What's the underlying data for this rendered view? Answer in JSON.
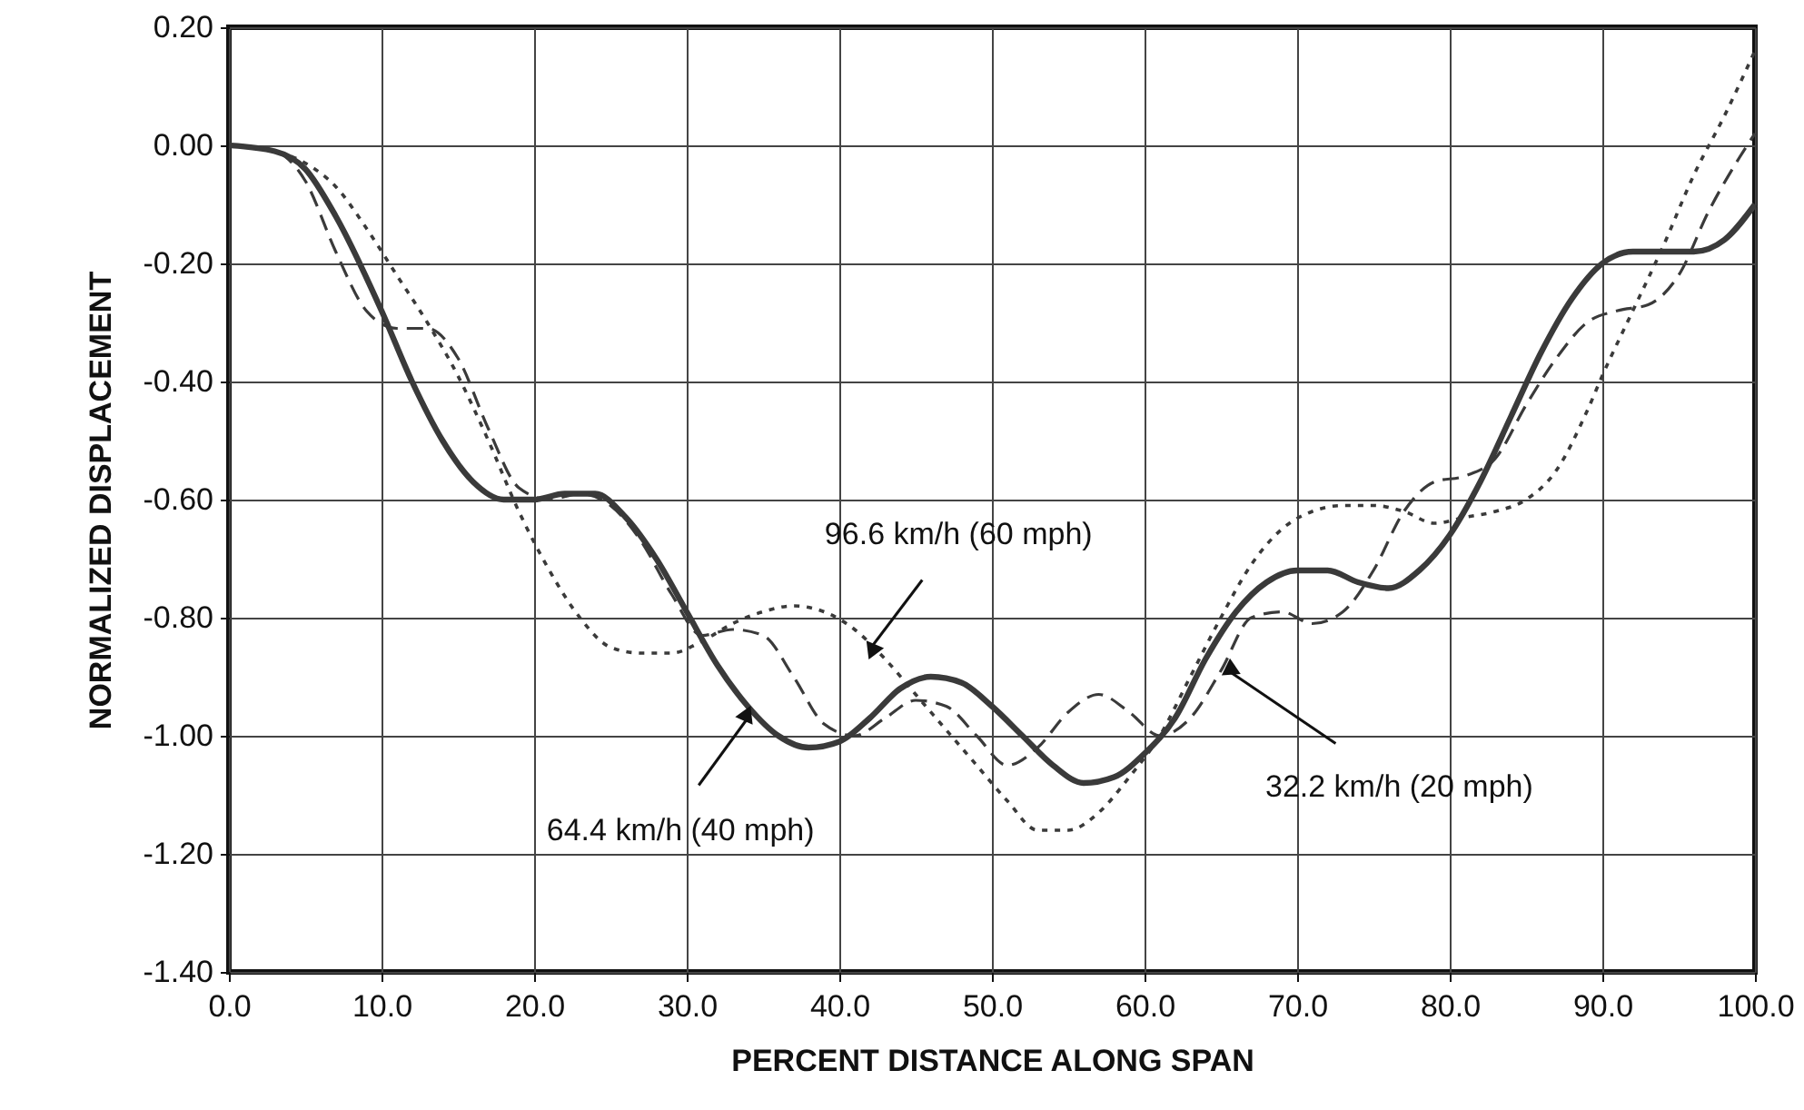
{
  "chart_data": {
    "type": "line",
    "xlabel": "PERCENT DISTANCE ALONG SPAN",
    "ylabel": "NORMALIZED DISPLACEMENT",
    "xlim": [
      0,
      100
    ],
    "ylim": [
      -1.4,
      0.2
    ],
    "xticks": [
      {
        "value": 0,
        "label": "0.0"
      },
      {
        "value": 10,
        "label": "10.0"
      },
      {
        "value": 20,
        "label": "20.0"
      },
      {
        "value": 30,
        "label": "30.0"
      },
      {
        "value": 40,
        "label": "40.0"
      },
      {
        "value": 50,
        "label": "50.0"
      },
      {
        "value": 60,
        "label": "60.0"
      },
      {
        "value": 70,
        "label": "70.0"
      },
      {
        "value": 80,
        "label": "80.0"
      },
      {
        "value": 90,
        "label": "90.0"
      },
      {
        "value": 100,
        "label": "100.0"
      }
    ],
    "yticks": [
      {
        "value": -1.4,
        "label": "-1.40"
      },
      {
        "value": -1.2,
        "label": "-1.20"
      },
      {
        "value": -1.0,
        "label": "-1.00"
      },
      {
        "value": -0.8,
        "label": "-0.80"
      },
      {
        "value": -0.6,
        "label": "-0.60"
      },
      {
        "value": -0.4,
        "label": "-0.40"
      },
      {
        "value": -0.2,
        "label": "-0.20"
      },
      {
        "value": 0,
        "label": "0.00"
      },
      {
        "value": 0.2,
        "label": "0.20"
      }
    ],
    "grid": true,
    "marker": "none",
    "series": [
      {
        "color": "#3a3a3a",
        "line_style": "solid",
        "x": [
          0,
          3,
          5,
          7,
          10,
          12,
          14,
          16,
          18,
          20,
          22,
          24,
          26,
          28,
          30,
          32,
          34,
          36,
          38,
          40,
          42,
          44,
          46,
          48,
          50,
          52,
          54,
          56,
          58,
          60,
          62,
          64,
          66,
          68,
          70,
          72,
          74,
          76,
          78,
          80,
          82,
          84,
          86,
          88,
          90,
          92,
          94,
          96,
          98,
          100
        ],
        "values": [
          0,
          -0.01,
          -0.04,
          -0.12,
          -0.28,
          -0.4,
          -0.5,
          -0.57,
          -0.6,
          -0.6,
          -0.59,
          -0.59,
          -0.63,
          -0.7,
          -0.79,
          -0.88,
          -0.95,
          -1.0,
          -1.02,
          -1.01,
          -0.97,
          -0.92,
          -0.9,
          -0.91,
          -0.95,
          -1.0,
          -1.05,
          -1.08,
          -1.07,
          -1.03,
          -0.97,
          -0.87,
          -0.79,
          -0.74,
          -0.72,
          -0.72,
          -0.74,
          -0.75,
          -0.72,
          -0.66,
          -0.57,
          -0.46,
          -0.35,
          -0.26,
          -0.2,
          -0.18,
          -0.18,
          -0.18,
          -0.16,
          -0.1
        ]
      },
      {
        "color": "#3a3a3a",
        "line_style": "dashed",
        "x": [
          0,
          3,
          5,
          7,
          9,
          11,
          13,
          15,
          17,
          19,
          21,
          23,
          25,
          27,
          29,
          31,
          33,
          35,
          37,
          39,
          41,
          43,
          45,
          47,
          49,
          51,
          53,
          55,
          57,
          59,
          61,
          63,
          65,
          67,
          69,
          71,
          73,
          75,
          77,
          79,
          81,
          83,
          85,
          87,
          89,
          91,
          93,
          95,
          97,
          99,
          100
        ],
        "values": [
          0,
          -0.01,
          -0.06,
          -0.18,
          -0.28,
          -0.31,
          -0.31,
          -0.36,
          -0.48,
          -0.58,
          -0.6,
          -0.59,
          -0.61,
          -0.67,
          -0.76,
          -0.83,
          -0.82,
          -0.83,
          -0.9,
          -0.98,
          -1.0,
          -0.97,
          -0.94,
          -0.95,
          -1.0,
          -1.05,
          -1.02,
          -0.96,
          -0.93,
          -0.96,
          -1.0,
          -0.97,
          -0.89,
          -0.8,
          -0.79,
          -0.81,
          -0.79,
          -0.72,
          -0.62,
          -0.57,
          -0.56,
          -0.53,
          -0.44,
          -0.36,
          -0.3,
          -0.28,
          -0.27,
          -0.22,
          -0.11,
          -0.02,
          0.02
        ]
      },
      {
        "color": "#3a3a3a",
        "line_style": "dotted",
        "x": [
          0,
          3,
          5,
          7,
          9,
          11,
          13,
          15,
          17,
          19,
          21,
          23,
          25,
          27,
          29,
          31,
          33,
          35,
          37,
          39,
          41,
          43,
          45,
          47,
          49,
          51,
          53,
          55,
          57,
          59,
          61,
          63,
          65,
          67,
          69,
          71,
          73,
          75,
          77,
          79,
          81,
          83,
          85,
          87,
          89,
          90,
          92,
          94,
          96,
          98,
          100
        ],
        "values": [
          0,
          -0.01,
          -0.03,
          -0.07,
          -0.14,
          -0.22,
          -0.3,
          -0.39,
          -0.5,
          -0.62,
          -0.72,
          -0.8,
          -0.85,
          -0.86,
          -0.86,
          -0.84,
          -0.81,
          -0.79,
          -0.78,
          -0.79,
          -0.82,
          -0.87,
          -0.93,
          -0.99,
          -1.05,
          -1.11,
          -1.16,
          -1.16,
          -1.13,
          -1.07,
          -1.0,
          -0.9,
          -0.8,
          -0.71,
          -0.65,
          -0.62,
          -0.61,
          -0.61,
          -0.62,
          -0.64,
          -0.63,
          -0.62,
          -0.6,
          -0.55,
          -0.45,
          -0.39,
          -0.28,
          -0.17,
          -0.05,
          0.05,
          0.16
        ]
      }
    ],
    "annotations": [
      {
        "text": "96.6 km/h (60 mph)",
        "x": 42.1,
        "y": -0.85
      },
      {
        "text": "64.4 km/h (40 mph)",
        "x": 34,
        "y": -0.97
      },
      {
        "text": "32.2 km/h (20 mph)",
        "x": 65.5,
        "y": -0.89
      }
    ]
  }
}
